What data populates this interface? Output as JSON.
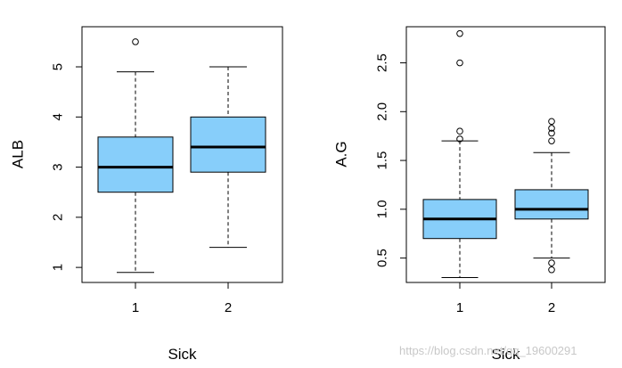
{
  "watermark": "https://blog.csdn.net/qq_19600291",
  "colors": {
    "box_fill": "#87CEFA",
    "stroke": "#000000"
  },
  "chart_data": [
    {
      "type": "boxplot",
      "xlabel": "Sick",
      "ylabel": "ALB",
      "categories": [
        "1",
        "2"
      ],
      "ylim": [
        0.7,
        5.8
      ],
      "yticks": [
        1,
        2,
        3,
        4,
        5
      ],
      "boxes": [
        {
          "category": "1",
          "whisker_low": 0.9,
          "q1": 2.5,
          "median": 3.0,
          "q3": 3.6,
          "whisker_high": 4.9,
          "outliers": [
            5.5
          ]
        },
        {
          "category": "2",
          "whisker_low": 1.4,
          "q1": 2.9,
          "median": 3.4,
          "q3": 4.0,
          "whisker_high": 5.0,
          "outliers": []
        }
      ]
    },
    {
      "type": "boxplot",
      "xlabel": "Sick",
      "ylabel": "A.G",
      "categories": [
        "1",
        "2"
      ],
      "ylim": [
        0.25,
        2.87
      ],
      "yticks": [
        "0.5",
        "1.0",
        "1.5",
        "2.0",
        "2.5"
      ],
      "boxes": [
        {
          "category": "1",
          "whisker_low": 0.3,
          "q1": 0.7,
          "median": 0.9,
          "q3": 1.1,
          "whisker_high": 1.7,
          "outliers": [
            1.72,
            1.8,
            2.5,
            2.8
          ]
        },
        {
          "category": "2",
          "whisker_low": 0.5,
          "q1": 0.9,
          "median": 1.0,
          "q3": 1.2,
          "whisker_high": 1.58,
          "outliers": [
            0.38,
            0.45,
            1.7,
            1.78,
            1.83,
            1.9
          ]
        }
      ]
    }
  ]
}
